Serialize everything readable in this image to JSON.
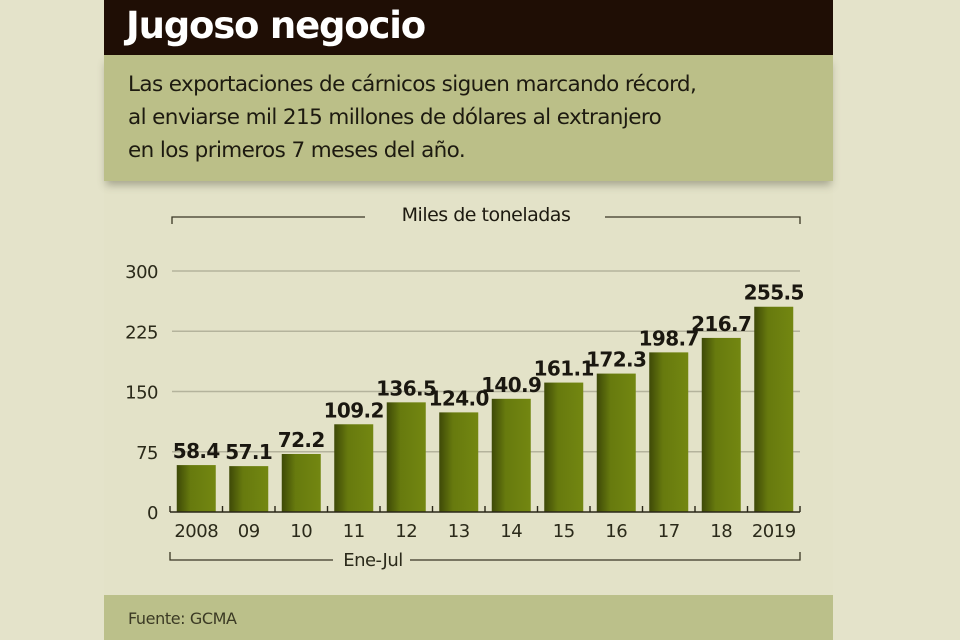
{
  "header": {
    "title": "Jugoso negocio",
    "dek": "Las exportaciones de cárnicos siguen marcando récord,\nal enviarse mil 215 millones de dólares al extranjero\nen los primeros 7 meses del año."
  },
  "footer": {
    "source": "Fuente: GCMA"
  },
  "colors": {
    "title_bar": "#1f0e05",
    "band": "#bbbf88",
    "background": "#e3e2c8",
    "bar": "#6f8210",
    "bar_dark": "#3f4a08",
    "gridline": "#b4b39c"
  },
  "chart_data": {
    "type": "bar",
    "title": "Jugoso negocio",
    "unit_label": "Miles de toneladas",
    "period_label": "Ene-Jul",
    "xlabel": "",
    "ylabel": "Miles de toneladas",
    "categories": [
      "2008",
      "09",
      "10",
      "11",
      "12",
      "13",
      "14",
      "15",
      "16",
      "17",
      "18",
      "2019"
    ],
    "values": [
      58.4,
      57.1,
      72.2,
      109.2,
      136.5,
      124.0,
      140.9,
      161.1,
      172.3,
      198.7,
      216.7,
      255.5
    ],
    "value_labels": [
      "58.4",
      "57.1",
      "72.2",
      "109.2",
      "136.5",
      "124.0",
      "140.9",
      "161.1",
      "172.3",
      "198.7",
      "216.7",
      "255.5"
    ],
    "yticks": [
      0,
      75,
      150,
      225,
      300
    ],
    "ylim": [
      0,
      300
    ],
    "grid": true,
    "legend": "none"
  }
}
